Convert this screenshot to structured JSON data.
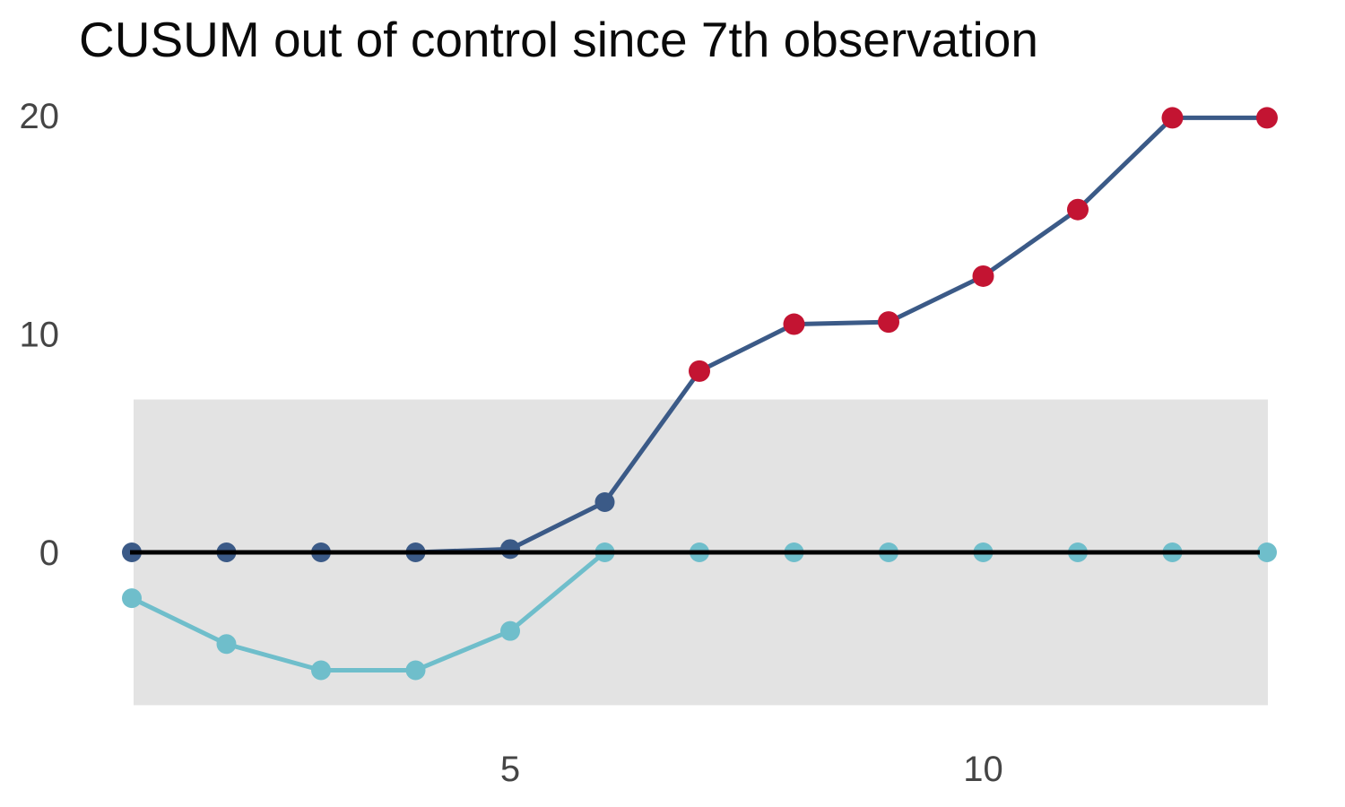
{
  "title": "CUSUM out of control since 7th observation",
  "chart_data": {
    "type": "line",
    "title": "CUSUM out of control since 7th observation",
    "x": [
      1,
      2,
      3,
      4,
      5,
      6,
      7,
      8,
      9,
      10,
      11,
      12,
      13
    ],
    "series": [
      {
        "name": "upper-cusum",
        "color": "#3b5a87",
        "values": [
          0,
          0,
          0,
          0,
          0.15,
          2.3,
          8.3,
          10.45,
          10.55,
          12.65,
          15.7,
          19.9,
          19.9
        ]
      },
      {
        "name": "lower-cusum",
        "color": "#6fbecb",
        "values": [
          -2.1,
          -4.2,
          -5.4,
          -5.4,
          -3.6,
          0,
          0,
          0,
          0,
          0,
          0,
          0,
          0
        ]
      }
    ],
    "out_of_control": {
      "start_observation": 7,
      "point_color": "#c31432",
      "applies_to_series": "upper-cusum"
    },
    "control_band": {
      "ymin": -7,
      "ymax": 7,
      "fill": "#e3e3e3"
    },
    "center_line": {
      "y": 0,
      "color": "#000000"
    },
    "yticks": [
      0,
      10,
      20
    ],
    "xticks": [
      5,
      10
    ],
    "xlim": [
      1,
      13
    ],
    "ylim": [
      -8.5,
      21
    ],
    "grid": false,
    "legend": false,
    "tick_label_color": "#454545",
    "title_color": "#0a0a0a"
  }
}
